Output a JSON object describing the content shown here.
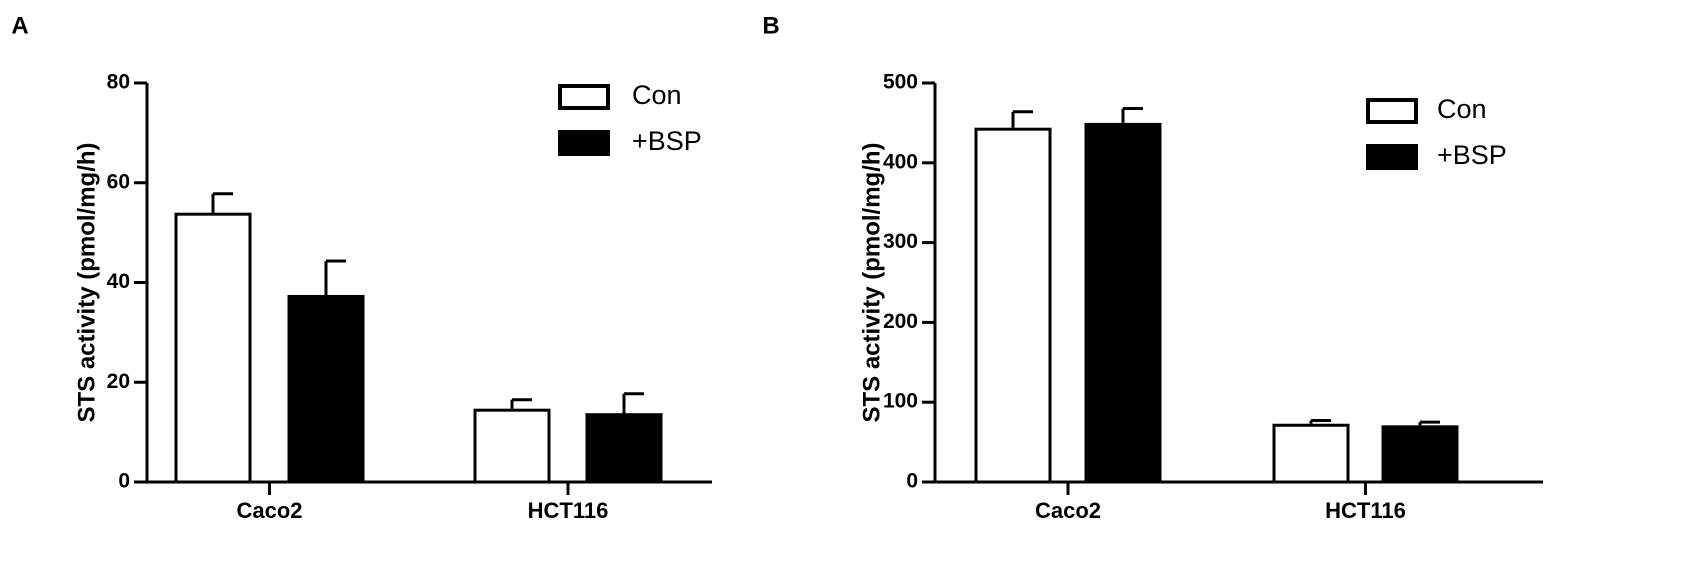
{
  "colors": {
    "con_fill": "#ffffff",
    "bsp_fill": "#000000",
    "stroke": "#000000"
  },
  "chart_data": [
    {
      "panel": "A",
      "type": "bar",
      "categories": [
        "Caco2",
        "HCT116"
      ],
      "ylabel": "STS activity (pmol/mg/h)",
      "ylim": [
        0,
        80
      ],
      "yticks": [
        0,
        20,
        40,
        60,
        80
      ],
      "legend_position": "top-right",
      "error_bars": "upper, one-sided",
      "series": [
        {
          "name": "Con",
          "values": [
            54,
            14.7
          ],
          "errors": [
            3.8,
            1.8
          ]
        },
        {
          "name": "+BSP",
          "values": [
            37.5,
            13.8
          ],
          "errors": [
            6.8,
            3.9
          ]
        }
      ]
    },
    {
      "panel": "B",
      "type": "bar",
      "categories": [
        "Caco2",
        "HCT116"
      ],
      "ylabel": "STS activity (pmol/mg/h)",
      "ylim": [
        0,
        500
      ],
      "yticks": [
        0,
        100,
        200,
        300,
        400,
        500
      ],
      "legend_position": "top-right",
      "error_bars": "upper, one-sided",
      "series": [
        {
          "name": "Con",
          "values": [
            444,
            73
          ],
          "errors": [
            20,
            4
          ]
        },
        {
          "name": "+BSP",
          "values": [
            450,
            71
          ],
          "errors": [
            18,
            4
          ]
        }
      ]
    }
  ]
}
